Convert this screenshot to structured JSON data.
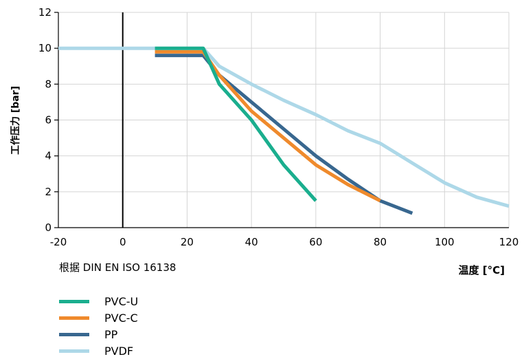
{
  "chart_data": {
    "type": "line",
    "xlabel": "温度 [°C]",
    "ylabel": "工作压力 [bar]",
    "note": "根据 DIN EN ISO 16138",
    "xlim": [
      -20,
      120
    ],
    "ylim": [
      0,
      12
    ],
    "xticks": [
      -20,
      0,
      20,
      40,
      60,
      80,
      100,
      120
    ],
    "yticks": [
      0,
      2,
      4,
      6,
      8,
      10,
      12
    ],
    "grid": true,
    "legend_position": "bottom-left",
    "series": [
      {
        "name": "PVDF",
        "color": "#add8e8",
        "x": [
          -20,
          10,
          25,
          30,
          40,
          50,
          60,
          70,
          80,
          90,
          100,
          110,
          120
        ],
        "y": [
          10,
          10,
          10,
          9,
          8,
          7.1,
          6.3,
          5.4,
          4.7,
          3.6,
          2.5,
          1.7,
          1.2
        ]
      },
      {
        "name": "PP",
        "color": "#38678f",
        "x": [
          10,
          25,
          30,
          40,
          50,
          60,
          70,
          80,
          90
        ],
        "y": [
          9.6,
          9.6,
          8.5,
          7,
          5.5,
          4,
          2.7,
          1.5,
          0.8
        ]
      },
      {
        "name": "PVC-C",
        "color": "#ef8a2c",
        "x": [
          10,
          25,
          30,
          40,
          50,
          60,
          70,
          80
        ],
        "y": [
          9.8,
          9.8,
          8.5,
          6.5,
          5,
          3.5,
          2.4,
          1.5
        ]
      },
      {
        "name": "PVC-U",
        "color": "#1aae8e",
        "x": [
          10,
          25,
          30,
          40,
          50,
          60
        ],
        "y": [
          10,
          10,
          8,
          6,
          3.5,
          1.5
        ]
      }
    ],
    "legend_order": [
      "PVC-U",
      "PVC-C",
      "PP",
      "PVDF"
    ]
  }
}
